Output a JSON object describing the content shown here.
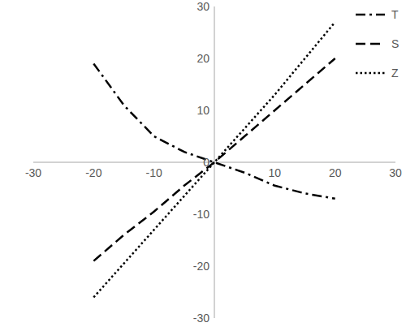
{
  "chart_data": {
    "type": "line",
    "x": [
      -20,
      -15,
      -10,
      -5,
      0,
      5,
      10,
      15,
      20
    ],
    "series": [
      {
        "name": "T",
        "color": "#000000",
        "line_style": "dashdot",
        "values": [
          19,
          11,
          5,
          2,
          0,
          -2,
          -4.5,
          -6,
          -7
        ]
      },
      {
        "name": "S",
        "color": "#000000",
        "line_style": "dashed",
        "values": [
          -19,
          -14,
          -9.5,
          -4.5,
          0,
          5,
          10,
          15,
          20
        ]
      },
      {
        "name": "Z",
        "color": "#000000",
        "line_style": "dotted",
        "values": [
          -26,
          -19.5,
          -13,
          -6.5,
          0,
          6.5,
          13,
          20,
          27
        ]
      }
    ],
    "xlim": [
      -30,
      30
    ],
    "xticks": [
      -30,
      -20,
      -10,
      10,
      20,
      30
    ],
    "ylim": [
      -30,
      30
    ],
    "yticks": [
      -30,
      -20,
      -10,
      0,
      10,
      20,
      30
    ],
    "legend": "upper right",
    "grid": false
  }
}
